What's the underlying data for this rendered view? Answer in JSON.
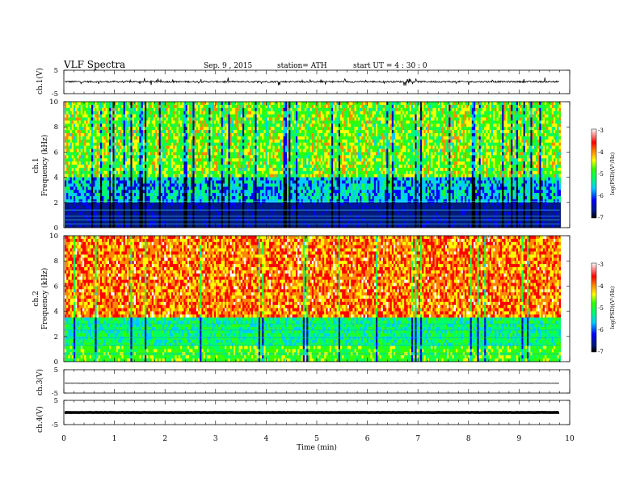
{
  "header": {
    "title": "VLF  Spectra",
    "date": "Sep. 9  , 2015",
    "station": "station= ATH",
    "start": "start  UT  =   4  : 30 : 0"
  },
  "chart_data": [
    {
      "type": "line",
      "panel": "ch1-waveform",
      "ylabel": "ch.1(V)",
      "ylim": [
        -5,
        5
      ],
      "yticks": [
        "5",
        "-5"
      ],
      "series": [
        {
          "values_description": "noisy waveform near 0 V with spikes up to about +/-1.5 V"
        }
      ]
    },
    {
      "type": "heatmap",
      "panel": "ch1-spectrogram",
      "ylabel_line1": "ch.1",
      "ylabel_line2": "Frequency  (kHz)",
      "ylim": [
        0,
        10
      ],
      "yticks": [
        "0",
        "2",
        "4",
        "6",
        "8",
        "10"
      ],
      "colorbar": {
        "label": "log(PSD)(V²/Hz)",
        "range": [
          -7,
          -3
        ],
        "ticks": [
          "-3",
          "-4",
          "-5",
          "-6",
          "-7"
        ]
      },
      "description": "broadband emission 2-10 kHz, dark low band 0-2 kHz with horizontal lines"
    },
    {
      "type": "heatmap",
      "panel": "ch2-spectrogram",
      "ylabel_line1": "ch.2",
      "ylabel_line2": "Frequency  (kHz)",
      "ylim": [
        0,
        10
      ],
      "yticks": [
        "0",
        "2",
        "4",
        "6",
        "8",
        "10"
      ],
      "colorbar": {
        "label": "log(PSD)(V²/Hz)",
        "range": [
          -7,
          -3
        ],
        "ticks": [
          "-3",
          "-4",
          "-5",
          "-6",
          "-7"
        ]
      },
      "description": "strong emission (red/yellow) 4-10 kHz, green/cyan 0-4 kHz band"
    },
    {
      "type": "line",
      "panel": "ch3-waveform",
      "ylabel": "ch.3(V)",
      "ylim": [
        -5,
        5
      ],
      "yticks": [
        "5",
        "-5"
      ],
      "series": [
        {
          "values_description": "flat near -1 V"
        }
      ]
    },
    {
      "type": "line",
      "panel": "ch4-waveform",
      "ylabel": "ch.4(V)",
      "ylim": [
        -5,
        5
      ],
      "yticks": [
        "5",
        "-5"
      ],
      "series": [
        {
          "values_description": "thick flat trace near 0 V"
        }
      ]
    }
  ],
  "xaxis": {
    "label": "Time  (min)",
    "xlim": [
      0,
      10
    ],
    "ticks": [
      "0",
      "1",
      "2",
      "3",
      "4",
      "5",
      "6",
      "7",
      "8",
      "9",
      "10"
    ]
  },
  "colors": {
    "scale": [
      "#000000",
      "#001a80",
      "#0000ff",
      "#00ccff",
      "#00ff66",
      "#33ff00",
      "#ffff00",
      "#ff8800",
      "#ff0000",
      "#ffffff"
    ]
  }
}
